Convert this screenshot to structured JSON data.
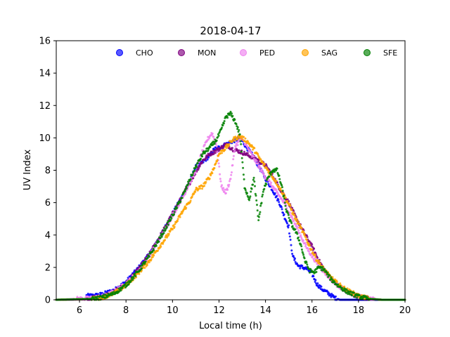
{
  "chart_data": {
    "type": "scatter",
    "title": "2018-04-17",
    "xlabel": "Local time (h)",
    "ylabel": "UV Index",
    "xlim": [
      5,
      20
    ],
    "ylim": [
      0,
      16
    ],
    "xticks": [
      6,
      8,
      10,
      12,
      14,
      16,
      18,
      20
    ],
    "yticks": [
      0,
      2,
      4,
      6,
      8,
      10,
      12,
      14,
      16
    ],
    "legend_position": "top",
    "grid": false,
    "series": [
      {
        "name": "CHO",
        "color": "#0000ff",
        "points": [
          [
            6.3,
            0.25
          ],
          [
            6.6,
            0.25
          ],
          [
            7.0,
            0.35
          ],
          [
            7.5,
            0.6
          ],
          [
            8.0,
            1.1
          ],
          [
            8.5,
            1.9
          ],
          [
            9.0,
            2.8
          ],
          [
            9.5,
            4.0
          ],
          [
            10.0,
            5.3
          ],
          [
            10.5,
            6.6
          ],
          [
            10.8,
            7.5
          ],
          [
            11.0,
            8.2
          ],
          [
            11.3,
            8.5
          ],
          [
            11.6,
            8.9
          ],
          [
            11.8,
            9.3
          ],
          [
            12.0,
            9.4
          ],
          [
            12.3,
            9.6
          ],
          [
            12.6,
            9.8
          ],
          [
            12.9,
            10.0
          ],
          [
            13.2,
            9.4
          ],
          [
            13.5,
            8.8
          ],
          [
            13.8,
            8.0
          ],
          [
            14.0,
            7.5
          ],
          [
            14.3,
            6.8
          ],
          [
            14.6,
            6.0
          ],
          [
            14.8,
            5.2
          ],
          [
            15.0,
            4.5
          ],
          [
            15.1,
            3.3
          ],
          [
            15.2,
            2.6
          ],
          [
            15.4,
            2.1
          ],
          [
            15.6,
            2.0
          ],
          [
            15.8,
            1.9
          ],
          [
            16.0,
            1.6
          ],
          [
            16.2,
            1.0
          ],
          [
            16.4,
            0.7
          ],
          [
            16.6,
            0.5
          ],
          [
            16.8,
            0.3
          ],
          [
            17.0,
            0.1
          ],
          [
            17.2,
            0.0
          ],
          [
            18.0,
            0.0
          ],
          [
            20.0,
            0.0
          ]
        ]
      },
      {
        "name": "MON",
        "color": "#800080",
        "points": [
          [
            5.0,
            0.0
          ],
          [
            6.0,
            0.02
          ],
          [
            6.5,
            0.1
          ],
          [
            7.0,
            0.2
          ],
          [
            7.5,
            0.5
          ],
          [
            8.0,
            1.0
          ],
          [
            8.5,
            1.8
          ],
          [
            9.0,
            2.8
          ],
          [
            9.5,
            4.0
          ],
          [
            10.0,
            5.3
          ],
          [
            10.5,
            6.6
          ],
          [
            11.0,
            7.9
          ],
          [
            11.3,
            8.6
          ],
          [
            11.6,
            9.0
          ],
          [
            12.0,
            9.3
          ],
          [
            12.3,
            9.6
          ],
          [
            12.6,
            9.3
          ],
          [
            13.0,
            9.1
          ],
          [
            13.3,
            8.9
          ],
          [
            13.6,
            8.7
          ],
          [
            14.0,
            8.3
          ],
          [
            14.3,
            7.7
          ],
          [
            14.6,
            6.9
          ],
          [
            15.0,
            6.0
          ],
          [
            15.3,
            5.1
          ],
          [
            15.6,
            4.3
          ],
          [
            16.0,
            3.3
          ],
          [
            16.3,
            2.4
          ],
          [
            16.6,
            1.7
          ],
          [
            17.0,
            1.0
          ],
          [
            17.5,
            0.5
          ],
          [
            18.0,
            0.2
          ],
          [
            18.5,
            0.05
          ],
          [
            19.0,
            0.0
          ],
          [
            20.0,
            0.0
          ]
        ]
      },
      {
        "name": "PED",
        "color": "#ee82ee",
        "points": [
          [
            5.0,
            0.0
          ],
          [
            6.5,
            0.1
          ],
          [
            7.0,
            0.2
          ],
          [
            7.5,
            0.5
          ],
          [
            8.0,
            1.0
          ],
          [
            8.5,
            1.7
          ],
          [
            9.0,
            2.7
          ],
          [
            9.5,
            3.9
          ],
          [
            10.0,
            5.2
          ],
          [
            10.5,
            6.5
          ],
          [
            11.0,
            8.0
          ],
          [
            11.3,
            9.2
          ],
          [
            11.5,
            9.9
          ],
          [
            11.7,
            10.3
          ],
          [
            11.9,
            9.5
          ],
          [
            12.1,
            7.0
          ],
          [
            12.3,
            6.6
          ],
          [
            12.5,
            7.5
          ],
          [
            12.7,
            9.5
          ],
          [
            13.0,
            10.0
          ],
          [
            13.3,
            9.2
          ],
          [
            13.6,
            8.5
          ],
          [
            13.9,
            7.8
          ],
          [
            14.2,
            7.2
          ],
          [
            14.5,
            6.6
          ],
          [
            14.8,
            6.0
          ],
          [
            15.1,
            5.2
          ],
          [
            15.4,
            4.3
          ],
          [
            15.7,
            3.4
          ],
          [
            16.0,
            2.7
          ],
          [
            16.3,
            2.1
          ],
          [
            16.6,
            1.6
          ],
          [
            17.0,
            1.0
          ],
          [
            17.5,
            0.5
          ],
          [
            18.0,
            0.2
          ],
          [
            18.7,
            0.05
          ],
          [
            19.0,
            0.0
          ],
          [
            20.0,
            0.0
          ]
        ]
      },
      {
        "name": "SAG",
        "color": "#ffa500",
        "points": [
          [
            5.0,
            0.0
          ],
          [
            6.5,
            0.05
          ],
          [
            7.0,
            0.15
          ],
          [
            7.5,
            0.4
          ],
          [
            8.0,
            0.9
          ],
          [
            8.5,
            1.6
          ],
          [
            9.0,
            2.4
          ],
          [
            9.5,
            3.4
          ],
          [
            10.0,
            4.4
          ],
          [
            10.5,
            5.6
          ],
          [
            10.8,
            6.2
          ],
          [
            11.0,
            6.8
          ],
          [
            11.3,
            7.0
          ],
          [
            11.6,
            7.6
          ],
          [
            11.8,
            8.2
          ],
          [
            12.0,
            9.0
          ],
          [
            12.3,
            9.4
          ],
          [
            12.6,
            9.9
          ],
          [
            12.9,
            10.1
          ],
          [
            13.2,
            9.8
          ],
          [
            13.5,
            9.3
          ],
          [
            13.8,
            8.6
          ],
          [
            14.1,
            8.0
          ],
          [
            14.4,
            7.4
          ],
          [
            14.7,
            6.7
          ],
          [
            15.0,
            5.9
          ],
          [
            15.3,
            5.0
          ],
          [
            15.6,
            4.2
          ],
          [
            15.9,
            3.3
          ],
          [
            16.2,
            2.5
          ],
          [
            16.5,
            1.9
          ],
          [
            16.8,
            1.4
          ],
          [
            17.1,
            1.0
          ],
          [
            17.5,
            0.6
          ],
          [
            18.0,
            0.25
          ],
          [
            18.5,
            0.05
          ],
          [
            19.0,
            0.0
          ],
          [
            20.0,
            0.0
          ]
        ]
      },
      {
        "name": "SFE",
        "color": "#008000",
        "points": [
          [
            5.0,
            0.0
          ],
          [
            6.5,
            0.05
          ],
          [
            7.0,
            0.15
          ],
          [
            7.5,
            0.4
          ],
          [
            8.0,
            0.9
          ],
          [
            8.5,
            1.7
          ],
          [
            9.0,
            2.7
          ],
          [
            9.5,
            3.9
          ],
          [
            10.0,
            5.2
          ],
          [
            10.5,
            6.6
          ],
          [
            10.8,
            7.6
          ],
          [
            11.0,
            8.2
          ],
          [
            11.3,
            9.0
          ],
          [
            11.6,
            9.4
          ],
          [
            11.9,
            9.9
          ],
          [
            12.1,
            10.5
          ],
          [
            12.3,
            11.3
          ],
          [
            12.5,
            11.5
          ],
          [
            12.7,
            11.0
          ],
          [
            12.9,
            10.2
          ],
          [
            13.1,
            7.0
          ],
          [
            13.3,
            6.2
          ],
          [
            13.5,
            7.5
          ],
          [
            13.7,
            4.9
          ],
          [
            13.9,
            6.7
          ],
          [
            14.1,
            7.5
          ],
          [
            14.3,
            8.0
          ],
          [
            14.5,
            8.0
          ],
          [
            14.7,
            7.0
          ],
          [
            14.9,
            5.5
          ],
          [
            15.1,
            4.7
          ],
          [
            15.3,
            4.2
          ],
          [
            15.5,
            3.5
          ],
          [
            15.7,
            2.4
          ],
          [
            15.9,
            1.8
          ],
          [
            16.1,
            1.7
          ],
          [
            16.3,
            2.0
          ],
          [
            16.5,
            1.9
          ],
          [
            16.8,
            1.3
          ],
          [
            17.1,
            0.9
          ],
          [
            17.5,
            0.5
          ],
          [
            18.0,
            0.2
          ],
          [
            18.5,
            0.05
          ],
          [
            19.0,
            0.0
          ],
          [
            20.0,
            0.0
          ]
        ]
      }
    ]
  }
}
